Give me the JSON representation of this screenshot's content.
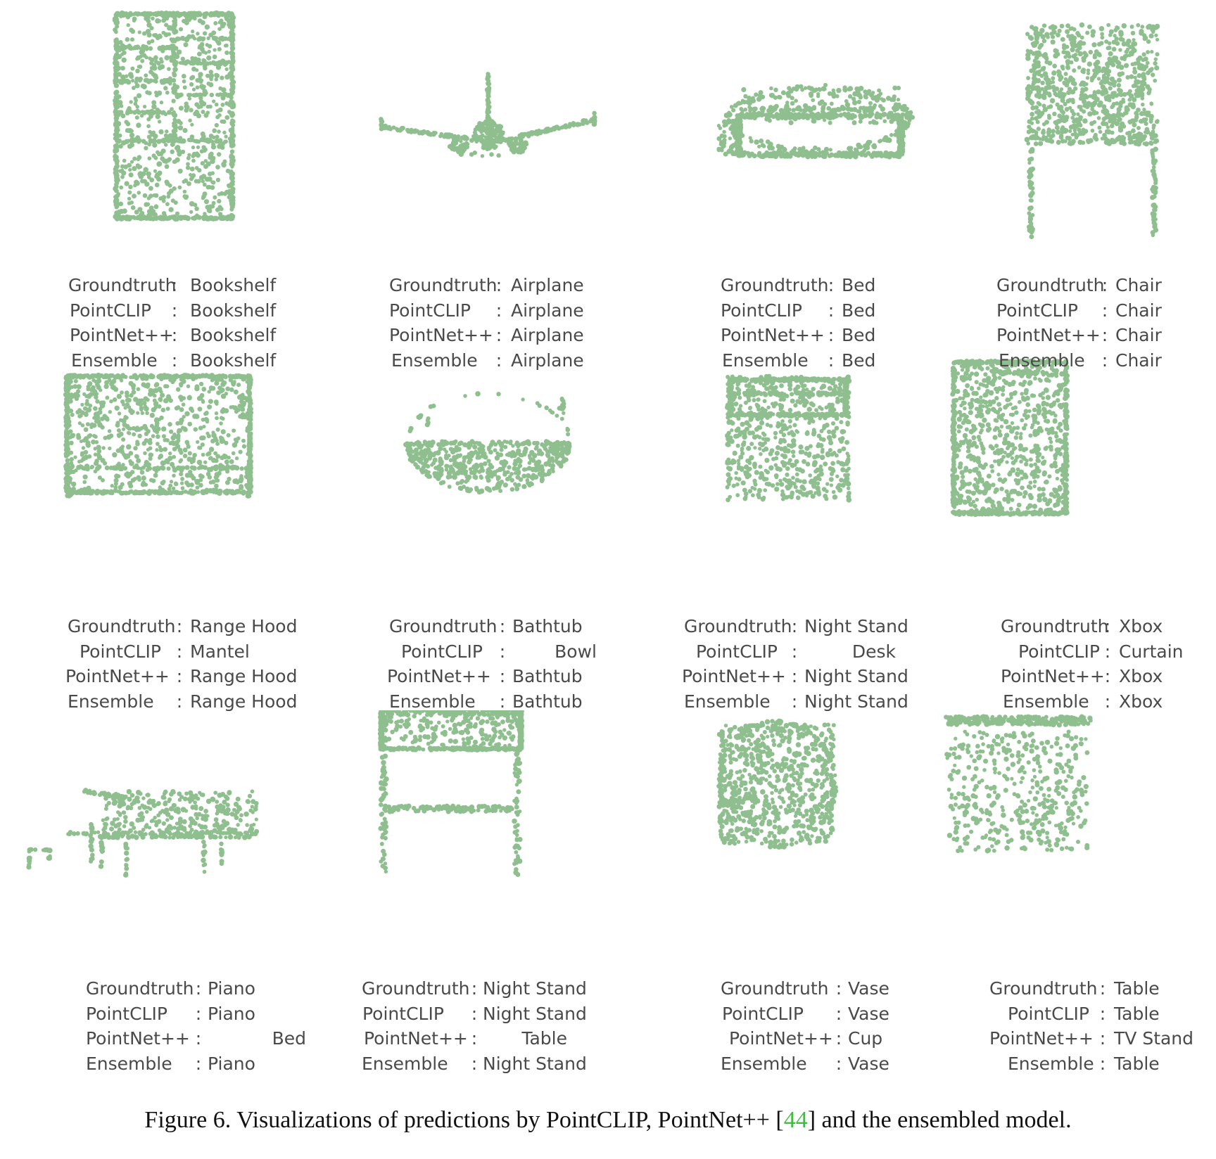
{
  "colors": {
    "points": "#8fbf8f",
    "label_text": "#4a4a4a",
    "citation": "#3fbf3f"
  },
  "row_labels": [
    "Groundtruth",
    "PointCLIP",
    "PointNet++",
    "Ensemble"
  ],
  "panels": [
    {
      "shape": "bookshelf",
      "groundtruth": "Bookshelf",
      "pointclip": "Bookshelf",
      "pointnet": "Bookshelf",
      "ensemble": "Bookshelf"
    },
    {
      "shape": "airplane",
      "groundtruth": "Airplane",
      "pointclip": "Airplane",
      "pointnet": "Airplane",
      "ensemble": "Airplane"
    },
    {
      "shape": "bed",
      "groundtruth": "Bed",
      "pointclip": "Bed",
      "pointnet": "Bed",
      "ensemble": "Bed"
    },
    {
      "shape": "chair",
      "groundtruth": "Chair",
      "pointclip": "Chair",
      "pointnet": "Chair",
      "ensemble": "Chair"
    },
    {
      "shape": "range-hood",
      "groundtruth": "Range Hood",
      "pointclip": "Mantel",
      "pointnet": "Range Hood",
      "ensemble": "Range Hood"
    },
    {
      "shape": "bathtub",
      "groundtruth": "Bathtub",
      "pointclip": "Bowl",
      "pointnet": "Bathtub",
      "ensemble": "Bathtub"
    },
    {
      "shape": "night-stand-box",
      "groundtruth": "Night Stand",
      "pointclip": "Desk",
      "pointnet": "Night Stand",
      "ensemble": "Night Stand"
    },
    {
      "shape": "xbox",
      "groundtruth": "Xbox",
      "pointclip": "Curtain",
      "pointnet": "Xbox",
      "ensemble": "Xbox"
    },
    {
      "shape": "piano",
      "groundtruth": "Piano",
      "pointclip": "Piano",
      "pointnet": "Bed",
      "ensemble": "Piano"
    },
    {
      "shape": "night-stand-legs",
      "groundtruth": "Night Stand",
      "pointclip": "Night Stand",
      "pointnet": "Table",
      "ensemble": "Night Stand"
    },
    {
      "shape": "vase",
      "groundtruth": "Vase",
      "pointclip": "Vase",
      "pointnet": "Cup",
      "ensemble": "Vase"
    },
    {
      "shape": "table",
      "groundtruth": "Table",
      "pointclip": "Table",
      "pointnet": "TV Stand",
      "ensemble": "Table"
    }
  ],
  "caption": {
    "prefix": "Figure 6. Visualizations of predictions by PointCLIP, PointNet++ [",
    "citation": "44",
    "suffix": "] and the ensembled model."
  }
}
